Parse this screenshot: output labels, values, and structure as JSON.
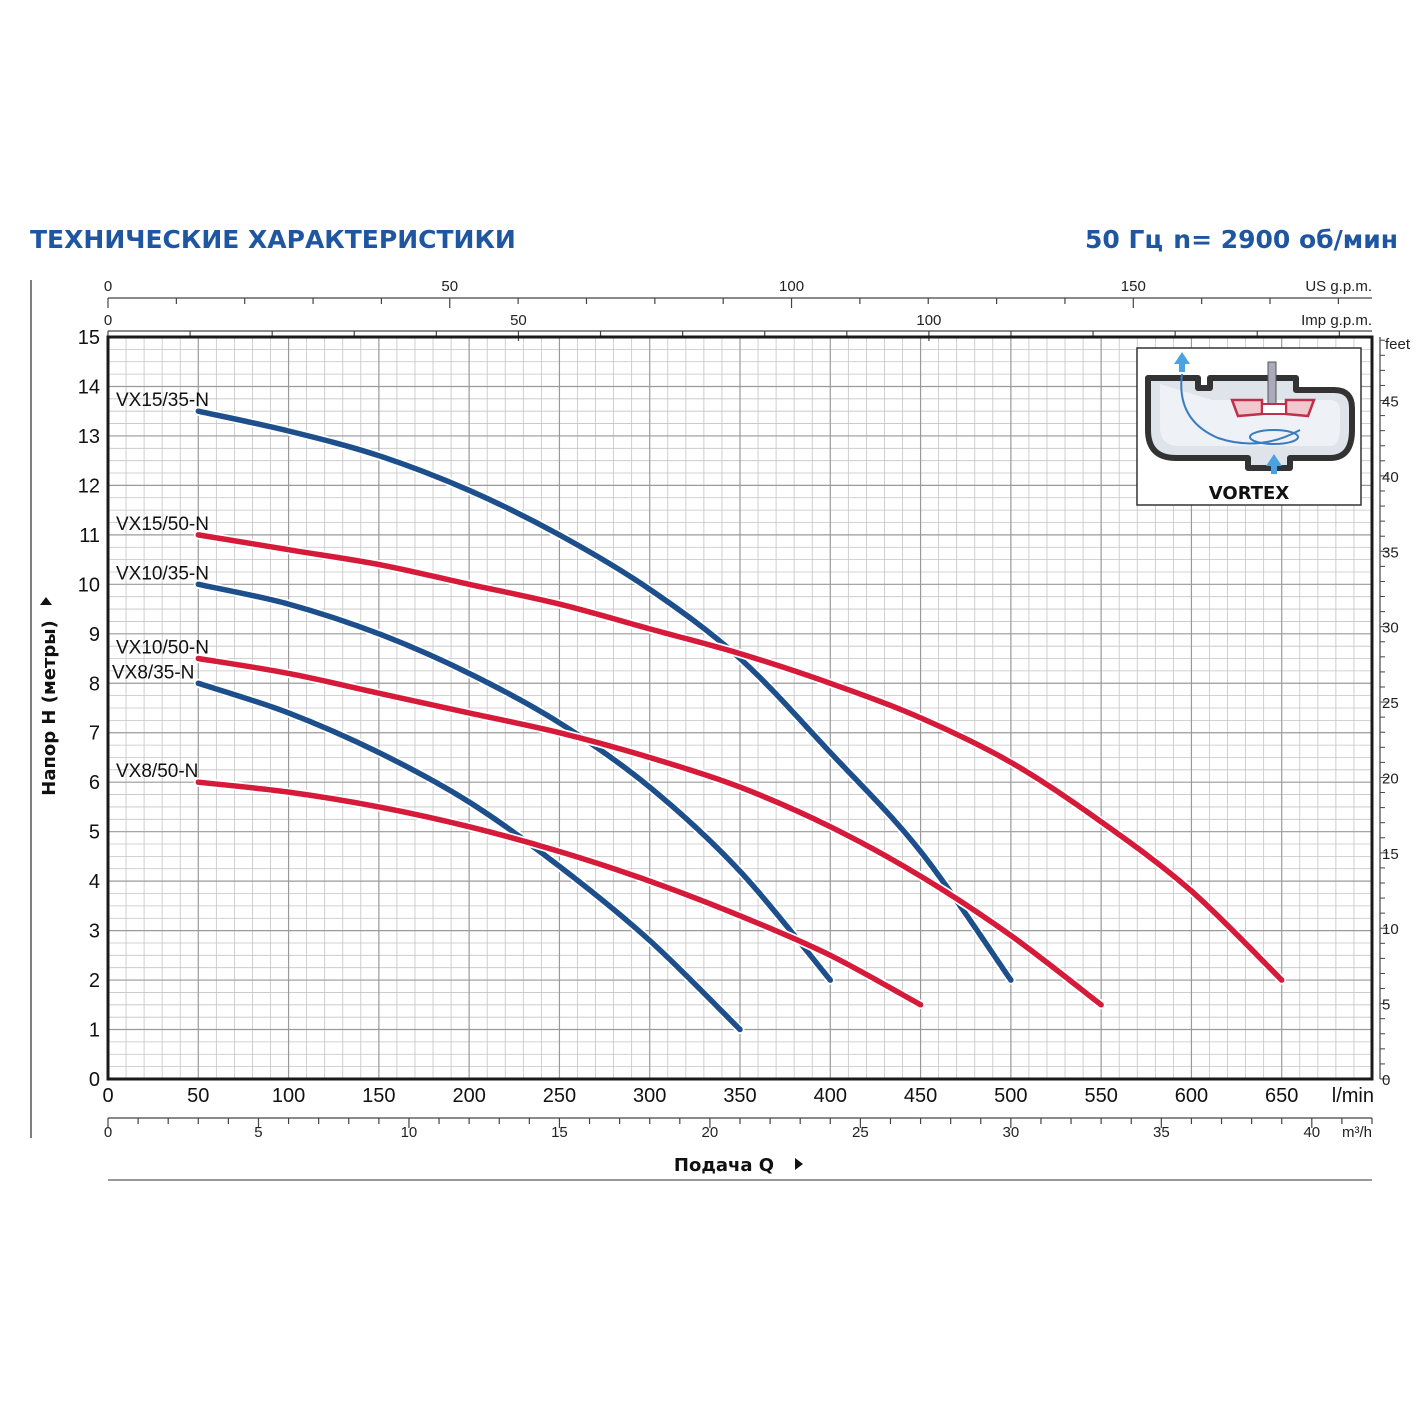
{
  "header": {
    "title": "ТЕХНИЧЕСКИЕ ХАРАКТЕРИСТИКИ",
    "frequency": "50 Гц",
    "speed": "n= 2900 об/мин"
  },
  "colors": {
    "title": "#1f56a2",
    "blue_series": "#1d4f8c",
    "red_series": "#d51a3a",
    "grid": "#c4c4c4",
    "frame": "#1a1a1a"
  },
  "inset": {
    "label": "VORTEX",
    "icon": "vortex-impeller-icon"
  },
  "chart_data": {
    "type": "line",
    "xlabel": "Подача Q",
    "ylabel": "Напор H (метры)",
    "x_unit": "l/min",
    "xlim": [
      0,
      700
    ],
    "ylim": [
      0,
      15
    ],
    "x_ticks": [
      0,
      50,
      100,
      150,
      200,
      250,
      300,
      350,
      400,
      450,
      500,
      550,
      600,
      650
    ],
    "y_ticks": [
      0,
      1,
      2,
      3,
      4,
      5,
      6,
      7,
      8,
      9,
      10,
      11,
      12,
      13,
      14,
      15
    ],
    "grid": true,
    "secondary_axes": {
      "us_gpm": {
        "unit": "US g.p.m.",
        "ticks": [
          0,
          50,
          100,
          150
        ]
      },
      "imp_gpm": {
        "unit": "Imp g.p.m.",
        "ticks": [
          0,
          50,
          100
        ]
      },
      "m3h": {
        "unit": "m³/h",
        "ticks": [
          0,
          5,
          10,
          15,
          20,
          25,
          30,
          35,
          40
        ]
      },
      "feet": {
        "unit": "feet",
        "ticks": [
          0,
          5,
          10,
          15,
          20,
          25,
          30,
          35,
          40,
          45
        ]
      }
    },
    "series": [
      {
        "name": "VX15/35-N",
        "color": "blue",
        "x": [
          50,
          100,
          150,
          200,
          250,
          300,
          350,
          400,
          450,
          500
        ],
        "y": [
          13.5,
          13.1,
          12.6,
          11.9,
          11.0,
          9.9,
          8.5,
          6.6,
          4.6,
          2.0
        ]
      },
      {
        "name": "VX15/50-N",
        "color": "red",
        "x": [
          50,
          100,
          150,
          200,
          250,
          300,
          350,
          400,
          450,
          500,
          550,
          600,
          650
        ],
        "y": [
          11.0,
          10.7,
          10.4,
          10.0,
          9.6,
          9.1,
          8.6,
          8.0,
          7.3,
          6.4,
          5.2,
          3.8,
          2.0
        ]
      },
      {
        "name": "VX10/35-N",
        "color": "blue",
        "x": [
          50,
          100,
          150,
          200,
          250,
          300,
          350,
          400
        ],
        "y": [
          10.0,
          9.6,
          9.0,
          8.2,
          7.2,
          5.9,
          4.2,
          2.0
        ]
      },
      {
        "name": "VX10/50-N",
        "color": "red",
        "x": [
          50,
          100,
          150,
          200,
          250,
          300,
          350,
          400,
          450,
          500,
          550
        ],
        "y": [
          8.5,
          8.2,
          7.8,
          7.4,
          7.0,
          6.5,
          5.9,
          5.1,
          4.1,
          2.9,
          1.5
        ]
      },
      {
        "name": "VX8/35-N",
        "color": "blue",
        "x": [
          50,
          100,
          150,
          200,
          250,
          300,
          350
        ],
        "y": [
          8.0,
          7.4,
          6.6,
          5.6,
          4.3,
          2.8,
          1.0
        ]
      },
      {
        "name": "VX8/50-N",
        "color": "red",
        "x": [
          50,
          100,
          150,
          200,
          250,
          300,
          350,
          400,
          450
        ],
        "y": [
          6.0,
          5.8,
          5.5,
          5.1,
          4.6,
          4.0,
          3.3,
          2.5,
          1.5
        ]
      }
    ]
  }
}
